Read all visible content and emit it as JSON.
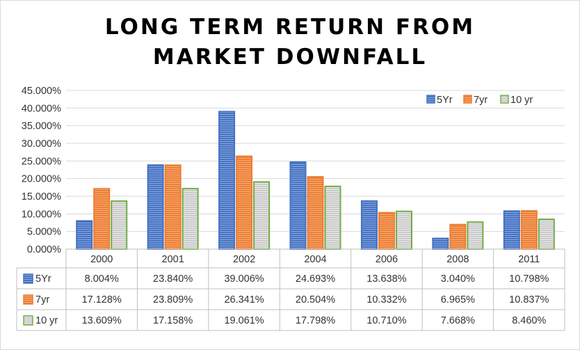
{
  "chart_data": {
    "type": "bar",
    "title": "LONG TERM RETURN FROM MARKET DOWNFALL",
    "categories": [
      "2000",
      "2001",
      "2002",
      "2004",
      "2006",
      "2008",
      "2011"
    ],
    "series": [
      {
        "name": "5Yr",
        "color": "#4472c4",
        "values": [
          8.004,
          23.84,
          39.006,
          24.693,
          13.638,
          3.04,
          10.798
        ],
        "labels": [
          "8.004%",
          "23.840%",
          "39.006%",
          "24.693%",
          "13.638%",
          "3.040%",
          "10.798%"
        ]
      },
      {
        "name": "7yr",
        "color": "#ed7d31",
        "values": [
          17.128,
          23.809,
          26.341,
          20.504,
          10.332,
          6.965,
          10.837
        ],
        "labels": [
          "17.128%",
          "23.809%",
          "26.341%",
          "20.504%",
          "10.332%",
          "6.965%",
          "10.837%"
        ]
      },
      {
        "name": "10 yr",
        "color": "#70ad47",
        "values": [
          13.609,
          17.158,
          19.061,
          17.798,
          10.71,
          7.668,
          8.46
        ],
        "labels": [
          "13.609%",
          "17.158%",
          "19.061%",
          "17.798%",
          "10.710%",
          "7.668%",
          "8.460%"
        ]
      }
    ],
    "ylim": [
      0,
      45
    ],
    "yticks": [
      "0.000%",
      "5.000%",
      "10.000%",
      "15.000%",
      "20.000%",
      "25.000%",
      "30.000%",
      "35.000%",
      "40.000%",
      "45.000%"
    ],
    "grid": true,
    "legend": "top-right",
    "data_table": true
  }
}
